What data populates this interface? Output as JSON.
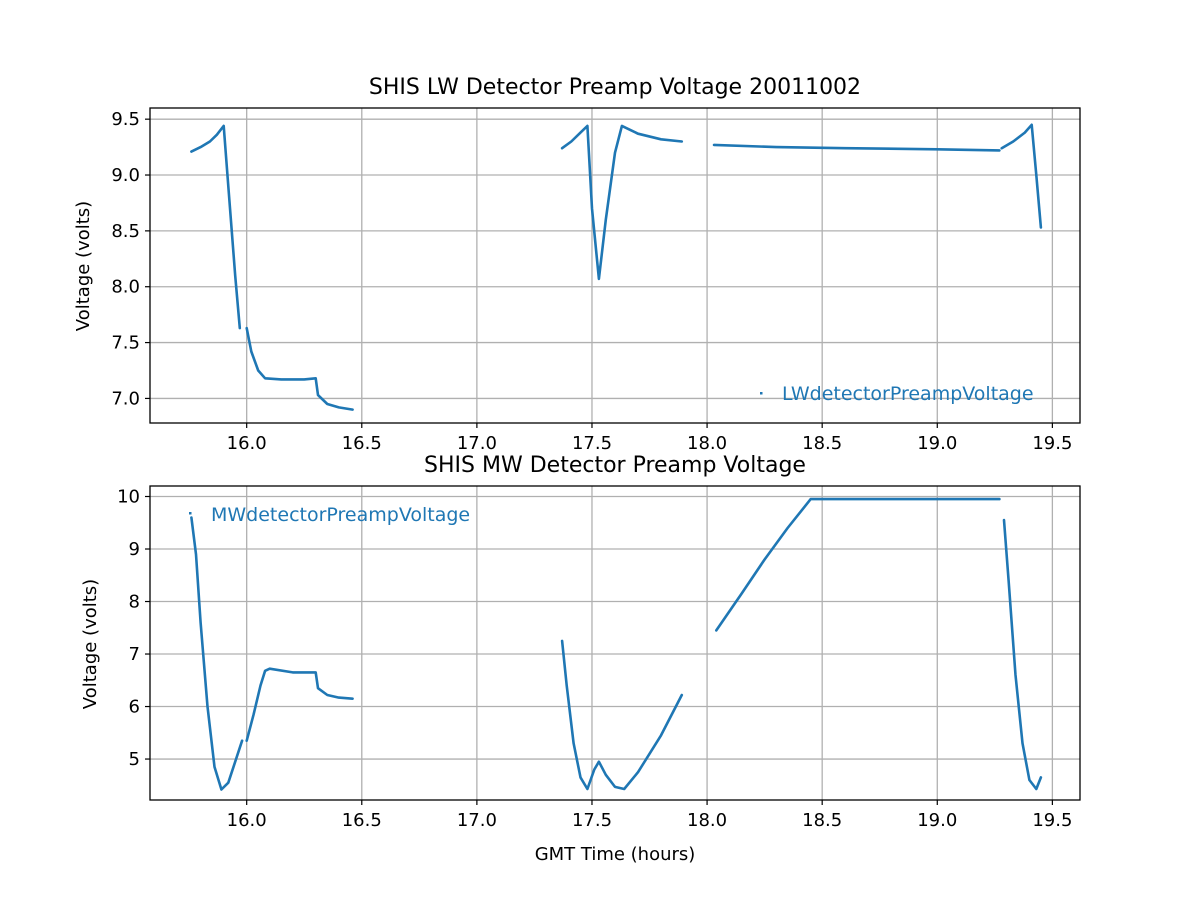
{
  "colors": {
    "series": "#1f77b4",
    "grid": "#b0b0b0",
    "axes": "#000000"
  },
  "chart_data": [
    {
      "type": "scatter",
      "title": "SHIS LW Detector Preamp Voltage 20011002",
      "xlabel": "",
      "ylabel": "Voltage (volts)",
      "xlim": [
        15.58,
        19.62
      ],
      "ylim": [
        6.78,
        9.6
      ],
      "xticks": [
        16.0,
        16.5,
        17.0,
        17.5,
        18.0,
        18.5,
        19.0,
        19.5
      ],
      "xtick_labels": [
        "16.0",
        "16.5",
        "17.0",
        "17.5",
        "18.0",
        "18.5",
        "19.0",
        "19.5"
      ],
      "yticks": [
        7.0,
        7.5,
        8.0,
        8.5,
        9.0,
        9.5
      ],
      "ytick_labels": [
        "7.0",
        "7.5",
        "8.0",
        "8.5",
        "9.0",
        "9.5"
      ],
      "grid": true,
      "legend_position": "lower-right",
      "series": [
        {
          "name": "LWdetectorPreampVoltage",
          "segments": [
            [
              [
                15.76,
                9.21
              ],
              [
                15.8,
                9.25
              ],
              [
                15.84,
                9.3
              ],
              [
                15.87,
                9.36
              ],
              [
                15.9,
                9.44
              ],
              [
                15.92,
                8.9
              ],
              [
                15.95,
                8.1
              ],
              [
                15.97,
                7.63
              ]
            ],
            [
              [
                16.0,
                7.63
              ],
              [
                16.02,
                7.42
              ],
              [
                16.05,
                7.25
              ],
              [
                16.08,
                7.18
              ],
              [
                16.15,
                7.17
              ],
              [
                16.25,
                7.17
              ],
              [
                16.3,
                7.18
              ],
              [
                16.31,
                7.03
              ],
              [
                16.35,
                6.95
              ],
              [
                16.4,
                6.92
              ],
              [
                16.46,
                6.9
              ]
            ],
            [
              [
                17.37,
                9.24
              ],
              [
                17.41,
                9.3
              ],
              [
                17.45,
                9.38
              ],
              [
                17.48,
                9.44
              ],
              [
                17.5,
                8.7
              ],
              [
                17.53,
                8.07
              ],
              [
                17.56,
                8.6
              ],
              [
                17.6,
                9.2
              ],
              [
                17.63,
                9.44
              ],
              [
                17.7,
                9.37
              ],
              [
                17.8,
                9.32
              ],
              [
                17.89,
                9.3
              ]
            ],
            [
              [
                18.03,
                9.27
              ],
              [
                18.3,
                9.25
              ],
              [
                18.6,
                9.24
              ],
              [
                19.0,
                9.23
              ],
              [
                19.27,
                9.22
              ]
            ],
            [
              [
                19.28,
                9.24
              ],
              [
                19.33,
                9.3
              ],
              [
                19.38,
                9.38
              ],
              [
                19.41,
                9.45
              ],
              [
                19.43,
                9.0
              ],
              [
                19.45,
                8.53
              ]
            ]
          ]
        }
      ]
    },
    {
      "type": "scatter",
      "title": "SHIS MW Detector Preamp Voltage",
      "xlabel": "GMT Time (hours)",
      "ylabel": "Voltage (volts)",
      "xlim": [
        15.58,
        19.62
      ],
      "ylim": [
        4.22,
        10.2
      ],
      "xticks": [
        16.0,
        16.5,
        17.0,
        17.5,
        18.0,
        18.5,
        19.0,
        19.5
      ],
      "xtick_labels": [
        "16.0",
        "16.5",
        "17.0",
        "17.5",
        "18.0",
        "18.5",
        "19.0",
        "19.5"
      ],
      "yticks": [
        5,
        6,
        7,
        8,
        9,
        10
      ],
      "ytick_labels": [
        "5",
        "6",
        "7",
        "8",
        "9",
        "10"
      ],
      "grid": true,
      "legend_position": "upper-left",
      "series": [
        {
          "name": "MWdetectorPreampVoltage",
          "segments": [
            [
              [
                15.76,
                9.6
              ],
              [
                15.78,
                8.9
              ],
              [
                15.8,
                7.6
              ],
              [
                15.83,
                6.0
              ],
              [
                15.86,
                4.85
              ],
              [
                15.89,
                4.42
              ],
              [
                15.92,
                4.55
              ],
              [
                15.95,
                4.95
              ],
              [
                15.98,
                5.35
              ]
            ],
            [
              [
                16.0,
                5.35
              ],
              [
                16.03,
                5.85
              ],
              [
                16.06,
                6.4
              ],
              [
                16.08,
                6.68
              ],
              [
                16.1,
                6.72
              ],
              [
                16.2,
                6.65
              ],
              [
                16.3,
                6.65
              ],
              [
                16.31,
                6.35
              ],
              [
                16.35,
                6.22
              ],
              [
                16.4,
                6.17
              ],
              [
                16.46,
                6.15
              ]
            ],
            [
              [
                17.37,
                7.25
              ],
              [
                17.39,
                6.4
              ],
              [
                17.42,
                5.3
              ],
              [
                17.45,
                4.65
              ],
              [
                17.48,
                4.43
              ],
              [
                17.51,
                4.8
              ],
              [
                17.53,
                4.95
              ],
              [
                17.56,
                4.7
              ],
              [
                17.6,
                4.47
              ],
              [
                17.64,
                4.43
              ],
              [
                17.7,
                4.75
              ],
              [
                17.8,
                5.45
              ],
              [
                17.89,
                6.22
              ]
            ],
            [
              [
                18.04,
                7.45
              ],
              [
                18.15,
                8.15
              ],
              [
                18.25,
                8.8
              ],
              [
                18.35,
                9.4
              ],
              [
                18.45,
                9.95
              ],
              [
                19.27,
                9.95
              ]
            ],
            [
              [
                19.29,
                9.55
              ],
              [
                19.31,
                8.4
              ],
              [
                19.34,
                6.6
              ],
              [
                19.37,
                5.3
              ],
              [
                19.4,
                4.6
              ],
              [
                19.43,
                4.43
              ],
              [
                19.45,
                4.65
              ]
            ]
          ]
        }
      ]
    }
  ]
}
